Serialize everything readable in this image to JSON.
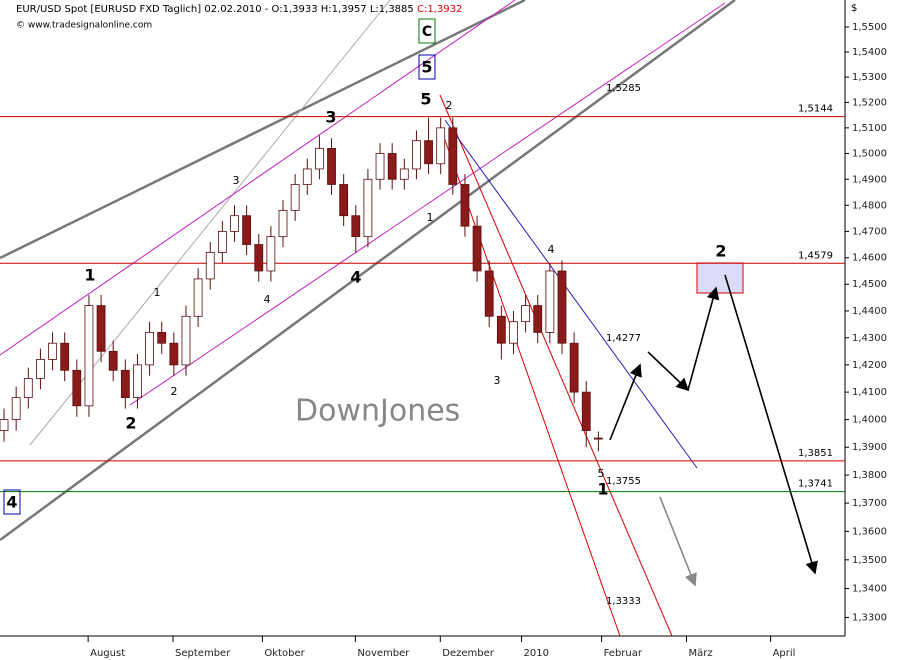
{
  "chart_data": {
    "type": "candlestick",
    "title": "EUR/USD Spot [EURUSD FXD  Taglich] 02.02.2010 - O:1,3933 H:1,3957 L:1,3885",
    "close_label": "C:1,3932",
    "subtitle": "© www.tradesignalonline.com",
    "currency": "$",
    "watermark": "DownJones",
    "log_scale": true,
    "up_color": "#ffffff",
    "down_color": "#8b1a1a",
    "xlim": [
      0,
      209
    ],
    "ylim": [
      1.3236,
      1.5609
    ],
    "x": [
      1,
      4,
      7,
      10,
      13,
      16,
      19,
      22,
      25,
      28,
      31,
      34,
      37,
      40,
      43,
      46,
      49,
      52,
      55,
      58,
      61,
      64,
      67,
      70,
      73,
      76,
      79,
      82,
      85,
      88,
      91,
      94,
      97,
      100,
      103,
      106,
      109,
      112,
      115,
      118,
      121,
      124,
      127,
      130,
      133,
      136,
      139,
      142,
      145,
      148
    ],
    "ohlc": [
      [
        1.396,
        1.404,
        1.392,
        1.4
      ],
      [
        1.4,
        1.412,
        1.396,
        1.408
      ],
      [
        1.408,
        1.419,
        1.404,
        1.415
      ],
      [
        1.415,
        1.426,
        1.411,
        1.422
      ],
      [
        1.422,
        1.432,
        1.418,
        1.428
      ],
      [
        1.428,
        1.432,
        1.414,
        1.418
      ],
      [
        1.418,
        1.422,
        1.401,
        1.405
      ],
      [
        1.405,
        1.446,
        1.401,
        1.442
      ],
      [
        1.442,
        1.446,
        1.421,
        1.425
      ],
      [
        1.425,
        1.429,
        1.414,
        1.418
      ],
      [
        1.418,
        1.422,
        1.404,
        1.408
      ],
      [
        1.408,
        1.424,
        1.404,
        1.42
      ],
      [
        1.42,
        1.436,
        1.416,
        1.432
      ],
      [
        1.432,
        1.436,
        1.424,
        1.428
      ],
      [
        1.428,
        1.432,
        1.416,
        1.42
      ],
      [
        1.42,
        1.442,
        1.416,
        1.438
      ],
      [
        1.438,
        1.456,
        1.434,
        1.452
      ],
      [
        1.452,
        1.466,
        1.448,
        1.462
      ],
      [
        1.462,
        1.474,
        1.458,
        1.47
      ],
      [
        1.47,
        1.48,
        1.466,
        1.476
      ],
      [
        1.476,
        1.48,
        1.461,
        1.465
      ],
      [
        1.465,
        1.469,
        1.451,
        1.455
      ],
      [
        1.455,
        1.472,
        1.451,
        1.468
      ],
      [
        1.468,
        1.482,
        1.464,
        1.478
      ],
      [
        1.478,
        1.492,
        1.474,
        1.488
      ],
      [
        1.488,
        1.498,
        1.484,
        1.494
      ],
      [
        1.494,
        1.507,
        1.49,
        1.502
      ],
      [
        1.502,
        1.506,
        1.484,
        1.488
      ],
      [
        1.488,
        1.492,
        1.472,
        1.476
      ],
      [
        1.476,
        1.48,
        1.462,
        1.468
      ],
      [
        1.468,
        1.494,
        1.464,
        1.49
      ],
      [
        1.49,
        1.504,
        1.486,
        1.5
      ],
      [
        1.5,
        1.504,
        1.486,
        1.49
      ],
      [
        1.49,
        1.498,
        1.486,
        1.494
      ],
      [
        1.494,
        1.509,
        1.49,
        1.505
      ],
      [
        1.505,
        1.514,
        1.492,
        1.496
      ],
      [
        1.496,
        1.514,
        1.492,
        1.51
      ],
      [
        1.51,
        1.514,
        1.484,
        1.488
      ],
      [
        1.488,
        1.492,
        1.468,
        1.472
      ],
      [
        1.472,
        1.476,
        1.451,
        1.455
      ],
      [
        1.455,
        1.459,
        1.434,
        1.438
      ],
      [
        1.438,
        1.442,
        1.422,
        1.428
      ],
      [
        1.428,
        1.44,
        1.424,
        1.436
      ],
      [
        1.436,
        1.446,
        1.432,
        1.442
      ],
      [
        1.442,
        1.446,
        1.428,
        1.432
      ],
      [
        1.432,
        1.458,
        1.428,
        1.455
      ],
      [
        1.455,
        1.459,
        1.424,
        1.428
      ],
      [
        1.428,
        1.432,
        1.406,
        1.41
      ],
      [
        1.41,
        1.414,
        1.39,
        1.396
      ],
      [
        1.3933,
        1.3957,
        1.3885,
        1.3932
      ]
    ],
    "yticks": [
      {
        "value": 1.33,
        "label": "1,3300"
      },
      {
        "value": 1.34,
        "label": "1,3400"
      },
      {
        "value": 1.35,
        "label": "1,3500"
      },
      {
        "value": 1.36,
        "label": "1,3600"
      },
      {
        "value": 1.37,
        "label": "1,3700"
      },
      {
        "value": 1.38,
        "label": "1,3800"
      },
      {
        "value": 1.39,
        "label": "1,3900"
      },
      {
        "value": 1.4,
        "label": "1,4000"
      },
      {
        "value": 1.41,
        "label": "1,4100"
      },
      {
        "value": 1.42,
        "label": "1,4200"
      },
      {
        "value": 1.43,
        "label": "1,4300"
      },
      {
        "value": 1.44,
        "label": "1,4400"
      },
      {
        "value": 1.45,
        "label": "1,4500"
      },
      {
        "value": 1.46,
        "label": "1,4600"
      },
      {
        "value": 1.47,
        "label": "1,4700"
      },
      {
        "value": 1.48,
        "label": "1,4800"
      },
      {
        "value": 1.49,
        "label": "1,4900"
      },
      {
        "value": 1.5,
        "label": "1,5000"
      },
      {
        "value": 1.51,
        "label": "1,5100"
      },
      {
        "value": 1.52,
        "label": "1,5200"
      },
      {
        "value": 1.53,
        "label": "1,5300"
      },
      {
        "value": 1.54,
        "label": "1,5400"
      },
      {
        "value": 1.55,
        "label": "1,5500"
      }
    ],
    "xticks": [
      {
        "value": 21.8,
        "label": "August"
      },
      {
        "value": 42.8,
        "label": "September"
      },
      {
        "value": 64.9,
        "label": "Oktober"
      },
      {
        "value": 87.9,
        "label": "November"
      },
      {
        "value": 108.9,
        "label": "Dezember"
      },
      {
        "value": 129,
        "label": "2010"
      },
      {
        "value": 148.8,
        "label": "Februar"
      },
      {
        "value": 169.8,
        "label": "März"
      },
      {
        "value": 190.6,
        "label": "April"
      }
    ],
    "hlines": [
      {
        "value": 1.5144,
        "label": "1,5144",
        "color": "#cc0000"
      },
      {
        "value": 1.4579,
        "label": "1,4579",
        "color": "#cc0000"
      },
      {
        "value": 1.3851,
        "label": "1,3851",
        "color": "#cc0000"
      },
      {
        "value": 1.3741,
        "label": "1,3741",
        "color": "#007700"
      }
    ],
    "wave_labels": [
      "C",
      "5",
      "5",
      "2",
      "3",
      "3",
      "1",
      "4",
      "1",
      "4",
      "1",
      "4",
      "2",
      "3",
      "2",
      "5",
      "1",
      "4",
      "2"
    ],
    "line_labels": [
      "1,5285",
      "1,4277",
      "1,3755",
      "1,3333"
    ]
  }
}
